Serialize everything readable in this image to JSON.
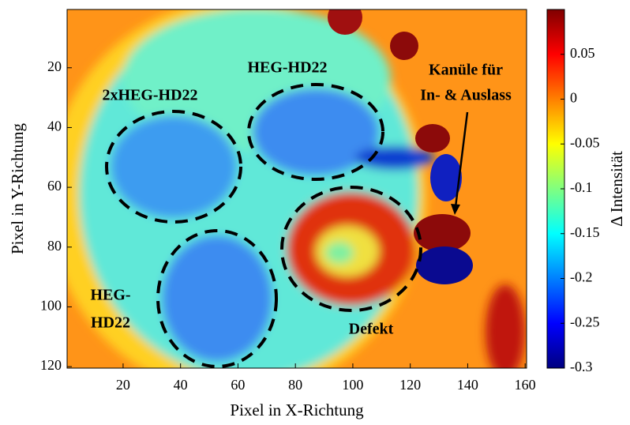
{
  "chart_data": {
    "type": "heatmap",
    "colormap": "jet",
    "xlabel": "Pixel in X-Richtung",
    "ylabel": "Pixel in Y-Richtung",
    "colorbar_label": "Δ Intensität",
    "xlim": [
      0.5,
      160.5
    ],
    "ylim": [
      0.5,
      120.5
    ],
    "y_reversed": true,
    "xticks": [
      20,
      40,
      60,
      80,
      100,
      120,
      140,
      160
    ],
    "yticks": [
      20,
      40,
      60,
      80,
      100,
      120
    ],
    "clim": [
      -0.3,
      0.1
    ],
    "cticks": [
      -0.3,
      -0.25,
      -0.2,
      -0.15,
      -0.1,
      -0.05,
      0,
      0.05
    ],
    "annotations": [
      "2xHEG-HD22",
      "HEG-HD22",
      "Kanüle für",
      "In- & Auslass",
      "HEG-",
      "HD22",
      "Defekt"
    ]
  }
}
